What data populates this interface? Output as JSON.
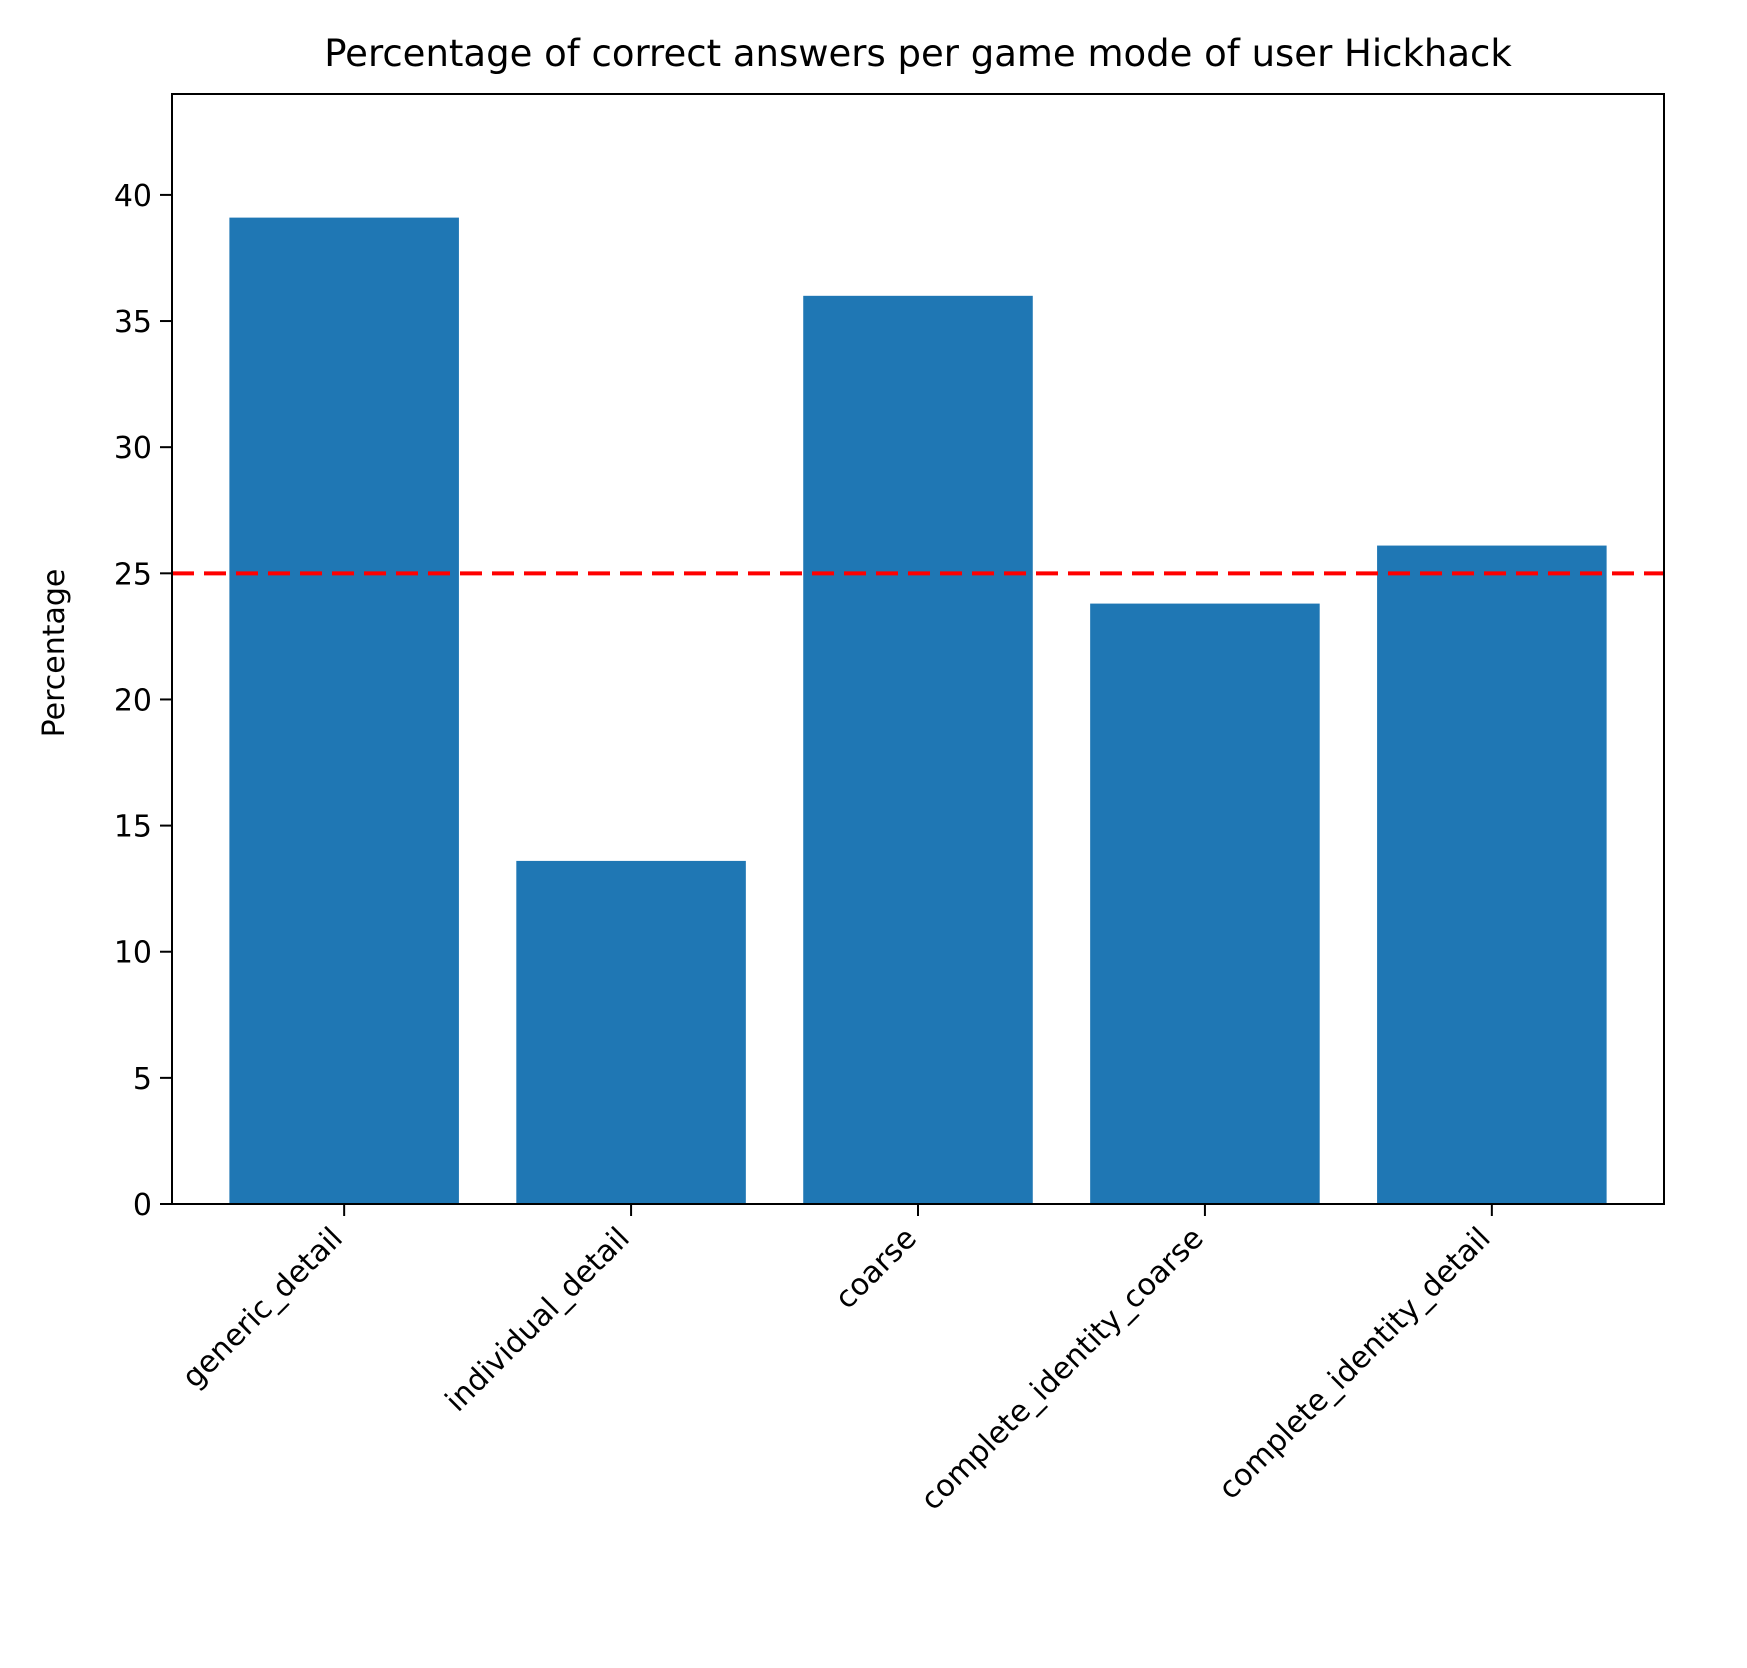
{
  "chart_data": {
    "type": "bar",
    "title": "Percentage of correct answers per game mode of user Hickhack",
    "xlabel": "",
    "ylabel": "Percentage",
    "categories": [
      "generic_detail",
      "individual_detail",
      "coarse",
      "complete_identity_coarse",
      "complete_identity_detail"
    ],
    "values": [
      39.1,
      13.6,
      36.0,
      23.8,
      26.1
    ],
    "ylim": [
      0,
      44
    ],
    "yticks": [
      0,
      5,
      10,
      15,
      20,
      25,
      30,
      35,
      40
    ],
    "reference_line": {
      "y": 25,
      "style": "dashed",
      "color": "#ff0000"
    },
    "bar_color": "#1f77b4",
    "grid": false,
    "legend": "none",
    "xtick_rotation": 45
  }
}
